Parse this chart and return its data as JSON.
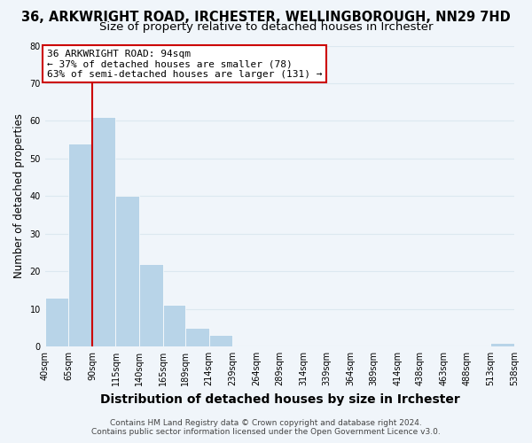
{
  "title": "36, ARKWRIGHT ROAD, IRCHESTER, WELLINGBOROUGH, NN29 7HD",
  "subtitle": "Size of property relative to detached houses in Irchester",
  "xlabel": "Distribution of detached houses by size in Irchester",
  "ylabel": "Number of detached properties",
  "bar_edges": [
    40,
    65,
    90,
    115,
    140,
    165,
    189,
    214,
    239,
    264,
    289,
    314,
    339,
    364,
    389,
    414,
    438,
    463,
    488,
    513,
    538
  ],
  "bar_heights": [
    13,
    54,
    61,
    40,
    22,
    11,
    5,
    3,
    0,
    0,
    0,
    0,
    0,
    0,
    0,
    0,
    0,
    0,
    0,
    1,
    0
  ],
  "bar_color": "#b8d4e8",
  "bar_edge_color": "#ffffff",
  "grid_color": "#dce8f0",
  "background_color": "#f0f5fa",
  "red_line_x": 90,
  "red_line_color": "#cc0000",
  "ylim": [
    0,
    80
  ],
  "yticks": [
    0,
    10,
    20,
    30,
    40,
    50,
    60,
    70,
    80
  ],
  "annotation_text": "36 ARKWRIGHT ROAD: 94sqm\n← 37% of detached houses are smaller (78)\n63% of semi-detached houses are larger (131) →",
  "annotation_box_color": "#ffffff",
  "annotation_box_edge": "#cc0000",
  "footer_line1": "Contains HM Land Registry data © Crown copyright and database right 2024.",
  "footer_line2": "Contains public sector information licensed under the Open Government Licence v3.0.",
  "title_fontsize": 10.5,
  "subtitle_fontsize": 9.5,
  "xlabel_fontsize": 10,
  "ylabel_fontsize": 8.5,
  "tick_fontsize": 7,
  "annotation_fontsize": 8,
  "footer_fontsize": 6.5
}
